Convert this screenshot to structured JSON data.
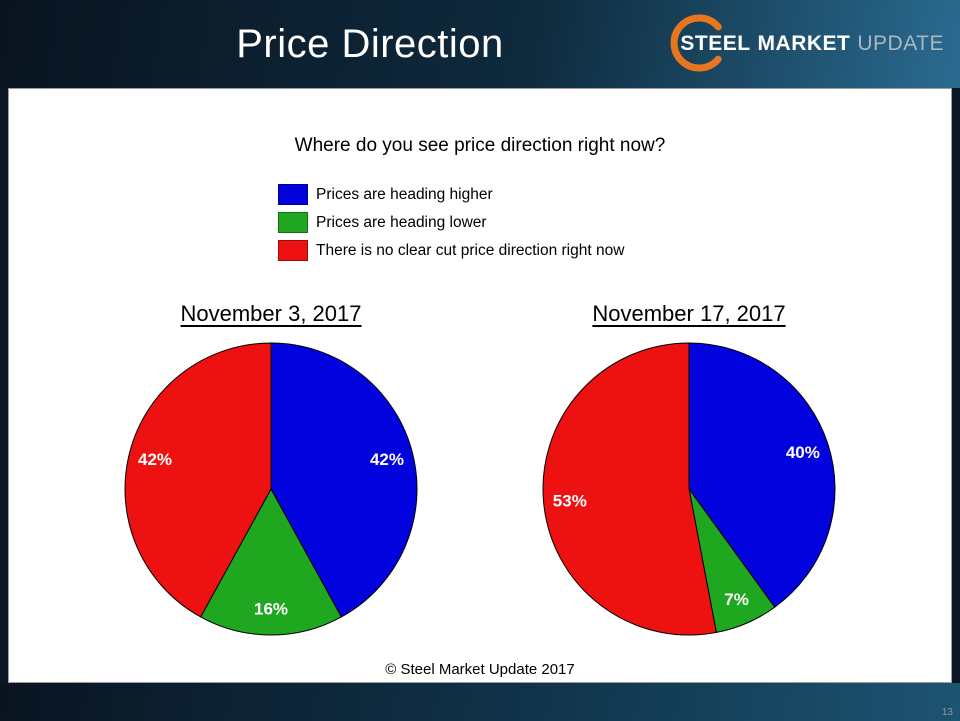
{
  "header": {
    "title": "Price Direction",
    "logo": {
      "word1": "STEEL",
      "word2": "MARKET",
      "word3": "UPDATE"
    }
  },
  "slide": {
    "question": "Where do you see price direction right now?",
    "footer": "© Steel Market Update 2017"
  },
  "legend": {
    "items": [
      {
        "label": "Prices are heading higher",
        "color": "#0202DE"
      },
      {
        "label": "Prices are heading lower",
        "color": "#1FA81F"
      },
      {
        "label": "There is no clear cut price direction right now",
        "color": "#EE1111"
      }
    ]
  },
  "page_number": "13",
  "chart_data": [
    {
      "type": "pie",
      "title": "November 3, 2017",
      "labels": [
        "Prices are heading higher",
        "Prices are heading lower",
        "There is no clear cut price direction right now"
      ],
      "values": [
        42,
        16,
        42
      ],
      "data_labels": [
        "42%",
        "16%",
        "42%"
      ],
      "colors": [
        "#0202DE",
        "#1FA81F",
        "#EE1111"
      ],
      "start_angle_deg": 0,
      "direction": "clockwise",
      "legend_position": "top"
    },
    {
      "type": "pie",
      "title": "November 17, 2017",
      "labels": [
        "Prices are heading higher",
        "Prices are heading lower",
        "There is no clear cut price direction right now"
      ],
      "values": [
        40,
        7,
        53
      ],
      "data_labels": [
        "40%",
        "7%",
        "53%"
      ],
      "colors": [
        "#0202DE",
        "#1FA81F",
        "#EE1111"
      ],
      "start_angle_deg": 0,
      "direction": "clockwise",
      "legend_position": "top"
    }
  ]
}
